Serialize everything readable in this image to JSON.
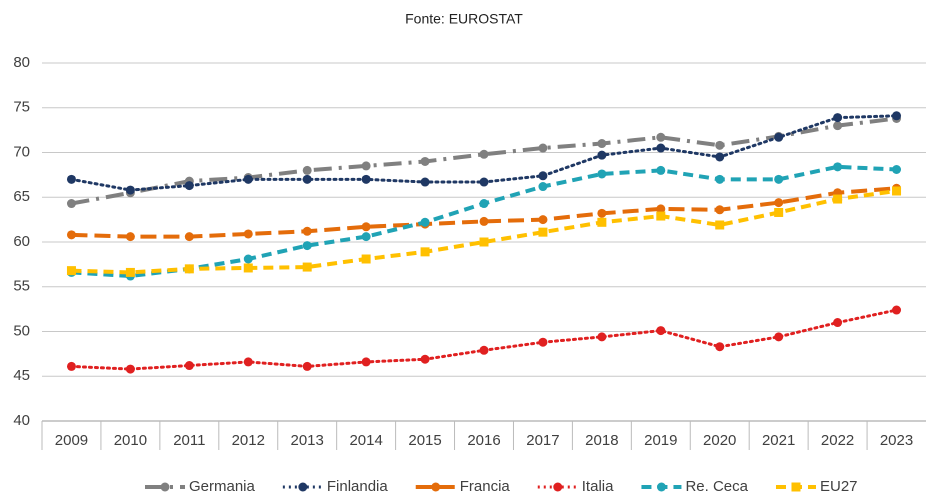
{
  "chart_data": {
    "type": "line",
    "title": "Fonte: EUROSTAT",
    "categories": [
      "2009",
      "2010",
      "2011",
      "2012",
      "2013",
      "2014",
      "2015",
      "2016",
      "2017",
      "2018",
      "2019",
      "2020",
      "2021",
      "2022",
      "2023"
    ],
    "series": [
      {
        "name": "Germania",
        "color": "#808080",
        "values": [
          64.3,
          65.5,
          66.8,
          67.2,
          68.0,
          68.5,
          69.0,
          69.8,
          70.5,
          71.0,
          71.7,
          70.8,
          71.8,
          73.0,
          73.8
        ]
      },
      {
        "name": "Finlandia",
        "color": "#1f3864",
        "values": [
          67.0,
          65.8,
          66.3,
          67.0,
          67.0,
          67.0,
          66.7,
          66.7,
          67.4,
          69.7,
          70.5,
          69.5,
          71.7,
          73.9,
          74.1
        ]
      },
      {
        "name": "Francia",
        "color": "#e46c0a",
        "values": [
          60.8,
          60.6,
          60.6,
          60.9,
          61.2,
          61.7,
          62.0,
          62.3,
          62.5,
          63.2,
          63.7,
          63.6,
          64.4,
          65.5,
          66.0
        ]
      },
      {
        "name": "Italia",
        "color": "#e02020",
        "values": [
          46.1,
          45.8,
          46.2,
          46.6,
          46.1,
          46.6,
          46.9,
          47.9,
          48.8,
          49.4,
          50.1,
          48.3,
          49.4,
          51.0,
          52.4
        ]
      },
      {
        "name": "Re. Ceca",
        "color": "#20a3b5",
        "values": [
          56.6,
          56.2,
          57.0,
          58.1,
          59.6,
          60.6,
          62.2,
          64.3,
          66.2,
          67.6,
          68.0,
          67.0,
          67.0,
          68.4,
          68.1
        ]
      },
      {
        "name": "EU27",
        "color": "#ffc000",
        "values": [
          56.8,
          56.6,
          57.0,
          57.1,
          57.2,
          58.1,
          58.9,
          60.0,
          61.1,
          62.2,
          62.9,
          61.9,
          63.3,
          64.8,
          65.7
        ]
      }
    ],
    "ylim": [
      40,
      80
    ],
    "yticks": [
      40,
      45,
      50,
      55,
      60,
      65,
      70,
      75,
      80
    ],
    "grid": true,
    "legend": "bottom"
  }
}
